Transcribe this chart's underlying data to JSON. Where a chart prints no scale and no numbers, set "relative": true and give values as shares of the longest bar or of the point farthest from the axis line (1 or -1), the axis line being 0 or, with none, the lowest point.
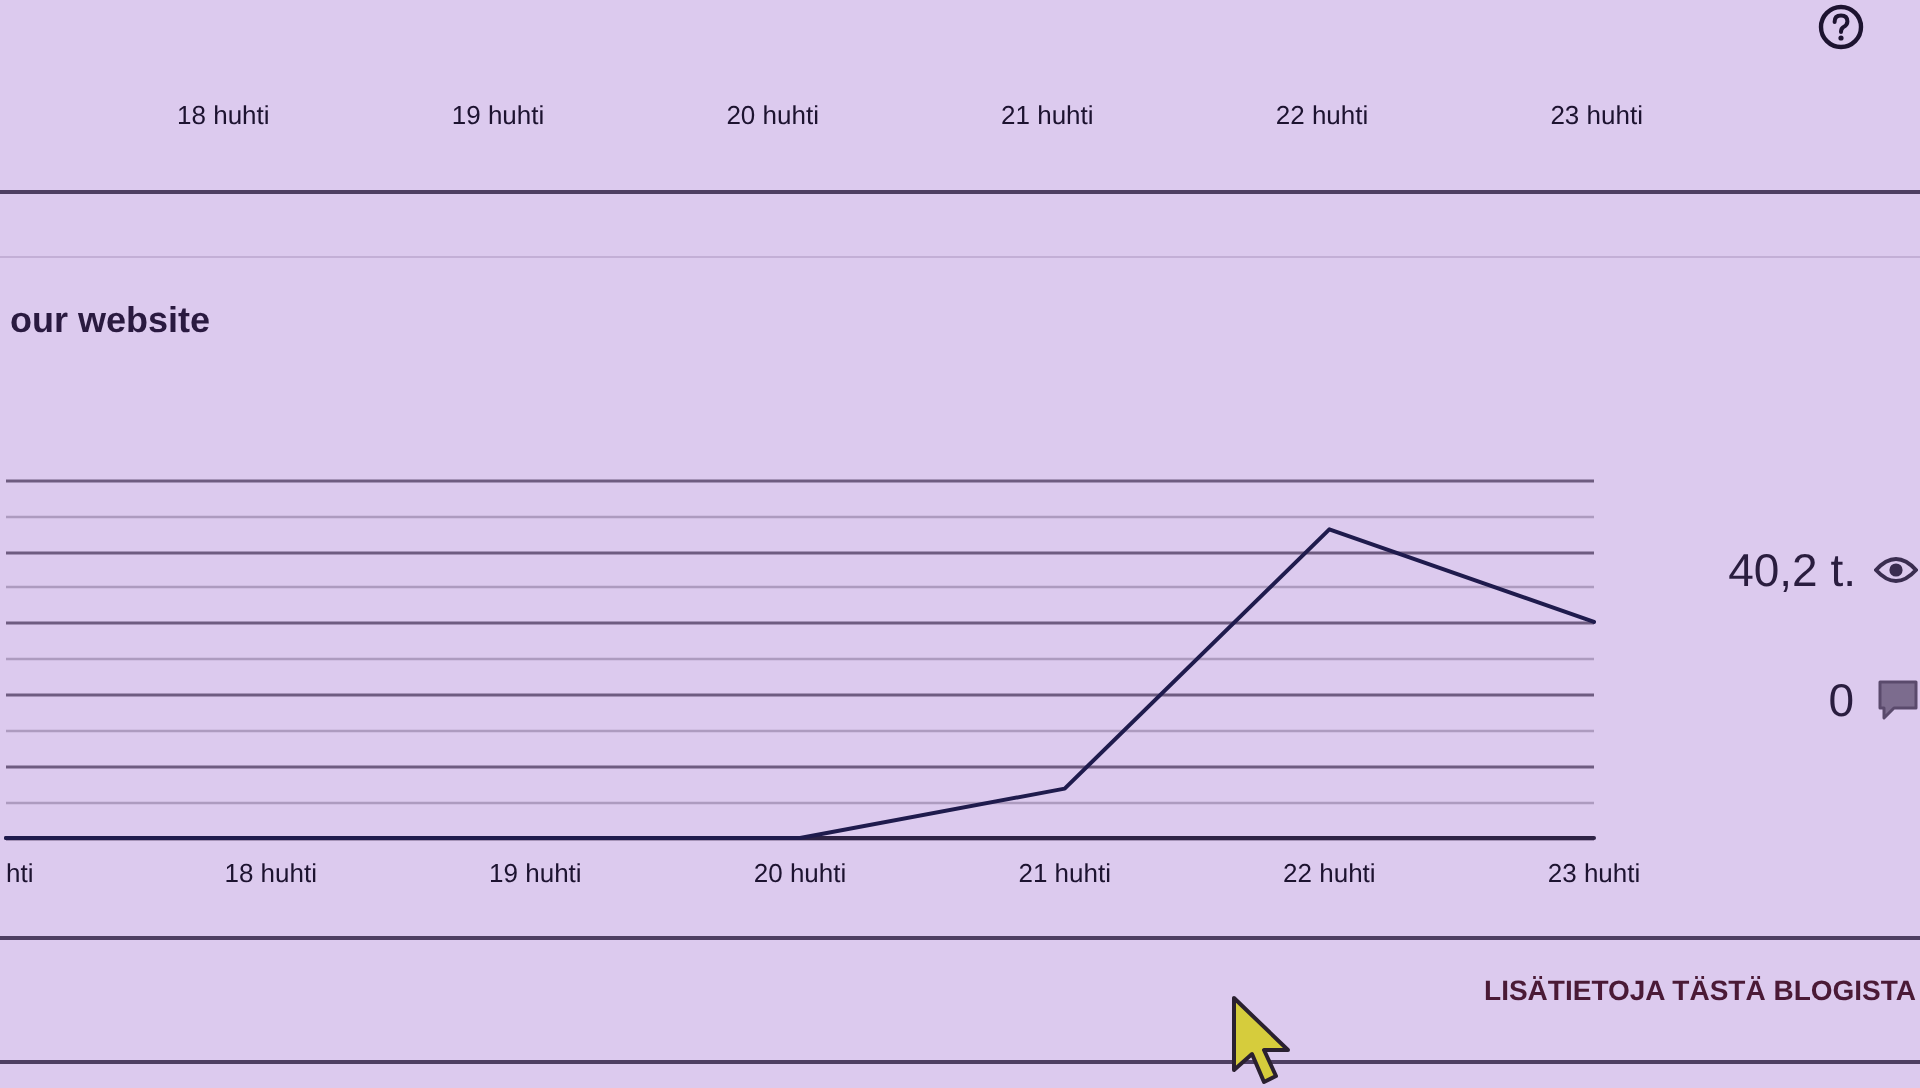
{
  "chart_data": {
    "type": "line",
    "title": "our website",
    "categories": [
      "hti",
      "18 huhti",
      "19 huhti",
      "20 huhti",
      "21 huhti",
      "22 huhti",
      "23 huhti"
    ],
    "values": [
      0,
      0,
      0,
      0,
      0.16,
      1,
      0.7
    ],
    "color": "#1f1b4d",
    "relative": true,
    "grid": "y",
    "annotations": [
      "18 huhti",
      "19 huhti",
      "20 huhti",
      "21 huhti",
      "22 huhti",
      "23 huhti",
      "40,2 t.",
      "0",
      "LISÄTIETOJA TÄSTÄ BLOGISTA"
    ]
  }
}
